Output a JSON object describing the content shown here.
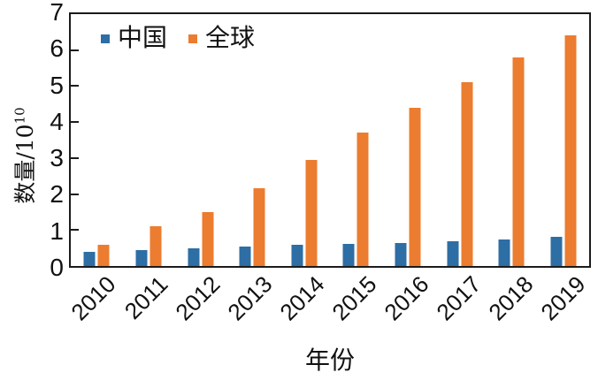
{
  "chart_data": {
    "type": "bar",
    "title": "",
    "xlabel": "年份",
    "ylabel_base": "数量/10",
    "ylabel_exponent": "10",
    "categories": [
      "2010",
      "2011",
      "2012",
      "2013",
      "2014",
      "2015",
      "2016",
      "2017",
      "2018",
      "2019"
    ],
    "series": [
      {
        "name": "中国",
        "color": "#2d6ea5",
        "values": [
          0.4,
          0.45,
          0.5,
          0.55,
          0.6,
          0.62,
          0.65,
          0.7,
          0.73,
          0.8
        ]
      },
      {
        "name": "全球",
        "color": "#ec7c2f",
        "values": [
          0.6,
          1.1,
          1.5,
          2.15,
          2.95,
          3.7,
          4.4,
          5.1,
          5.8,
          6.4
        ]
      }
    ],
    "ylim": [
      0,
      7
    ],
    "yticks": [
      0,
      1,
      2,
      3,
      4,
      5,
      6,
      7
    ],
    "grid": false,
    "legend_position": "upper left",
    "axis_color": "#1b1b1b"
  }
}
